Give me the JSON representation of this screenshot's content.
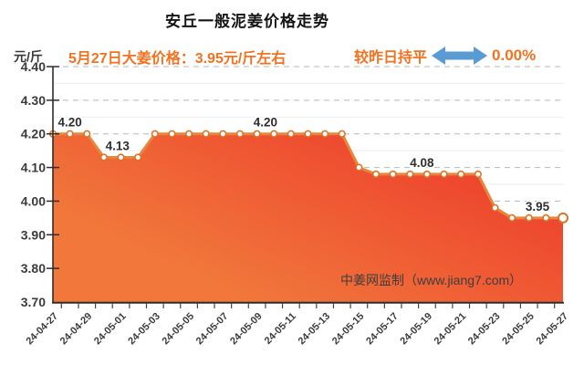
{
  "header": {
    "title": "安丘一般泥姜价格走势",
    "unit_label": "元/斤",
    "price_note": "5月27日大姜价格：3.95元/斤左右",
    "comparison_label": "较昨日持平",
    "comparison_value": "0.00%",
    "accent_orange": "#f2721f",
    "arrow_blue": "#5b9bd5"
  },
  "watermark": "中姜网监制（www.jiang7.com）",
  "chart_data": {
    "type": "area",
    "title": "安丘一般泥姜价格走势",
    "ylabel": "元/斤",
    "ylim": [
      3.7,
      4.4
    ],
    "y_major_ticks": [
      "4.40",
      "4.30",
      "4.20",
      "4.10",
      "4.00",
      "3.90",
      "3.80",
      "3.70"
    ],
    "grid": "major dashed + minor 0.05 solid",
    "legend_position": "none",
    "x": [
      "24-04-27",
      "24-04-28",
      "24-04-29",
      "24-04-30",
      "24-05-01",
      "24-05-02",
      "24-05-03",
      "24-05-04",
      "24-05-05",
      "24-05-06",
      "24-05-07",
      "24-05-08",
      "24-05-09",
      "24-05-10",
      "24-05-11",
      "24-05-12",
      "24-05-13",
      "24-05-14",
      "24-05-15",
      "24-05-16",
      "24-05-17",
      "24-05-18",
      "24-05-19",
      "24-05-20",
      "24-05-21",
      "24-05-22",
      "24-05-23",
      "24-05-24",
      "24-05-25",
      "24-05-26",
      "24-05-27"
    ],
    "values": [
      4.2,
      4.2,
      4.2,
      4.13,
      4.13,
      4.13,
      4.2,
      4.2,
      4.2,
      4.2,
      4.2,
      4.2,
      4.2,
      4.2,
      4.2,
      4.2,
      4.2,
      4.2,
      4.1,
      4.08,
      4.08,
      4.08,
      4.08,
      4.08,
      4.08,
      4.08,
      3.98,
      3.95,
      3.95,
      3.95,
      3.95
    ],
    "x_tick_labels": [
      "24-04-27",
      "24-04-29",
      "24-05-01",
      "24-05-03",
      "24-05-05",
      "24-05-07",
      "24-05-09",
      "24-05-11",
      "24-05-13",
      "24-05-15",
      "24-05-17",
      "24-05-19",
      "24-05-21",
      "24-05-23",
      "24-05-25",
      "24-05-27"
    ],
    "annotations": [
      {
        "text": "4.20",
        "index": 1,
        "value": 4.2
      },
      {
        "text": "4.13",
        "index": 3.8,
        "value": 4.13
      },
      {
        "text": "4.20",
        "index": 12.5,
        "value": 4.2
      },
      {
        "text": "4.08",
        "index": 21.7,
        "value": 4.08
      },
      {
        "text": "3.95",
        "index": 28.5,
        "value": 3.95
      }
    ],
    "colors": {
      "area_top": "#ed392b",
      "area_bottom": "#f1773b",
      "line": "#e8873c",
      "marker_ring": "#dc7226",
      "marker_fill": "#ffffff",
      "grid_major": "#b7b7b7",
      "grid_minor": "#ededed",
      "axis": "#2d2d2d",
      "annotation": "#2e2e2e",
      "tick_label": "#3b3b3b"
    }
  }
}
